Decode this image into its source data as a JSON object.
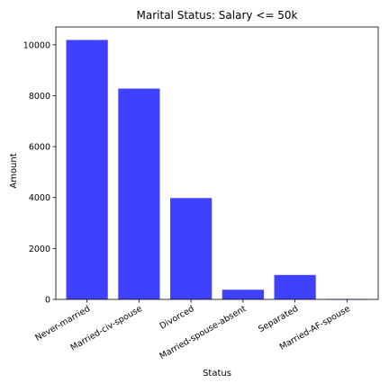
{
  "chart_data": {
    "type": "bar",
    "title": "Marital Status: Salary <= 50k",
    "xlabel": "Status",
    "ylabel": "Amount",
    "categories": [
      "Never-married",
      "Married-civ-spouse",
      "Divorced",
      "Married-spouse-absent",
      "Separated",
      "Married-AF-spouse"
    ],
    "values": [
      10190,
      8280,
      3980,
      380,
      960,
      15
    ],
    "ylim": [
      0,
      10700
    ],
    "yticks": [
      0,
      2000,
      4000,
      6000,
      8000,
      10000
    ],
    "bar_color": "#4040ff",
    "grid": false,
    "legend": "none"
  }
}
